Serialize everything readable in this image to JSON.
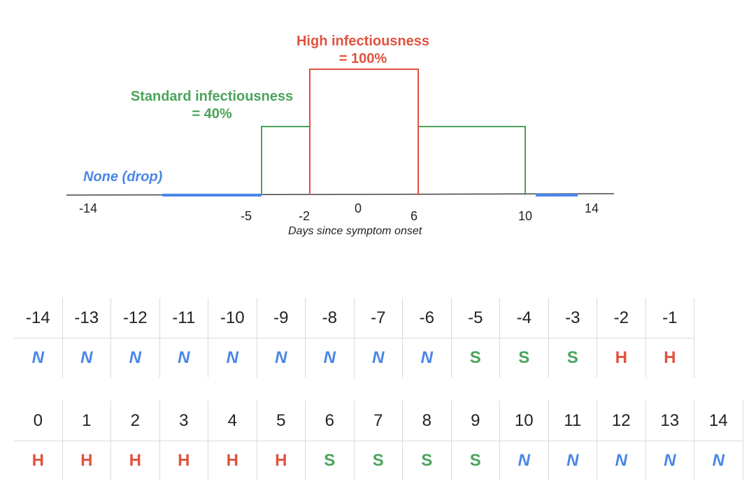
{
  "colors": {
    "none": "#4a86e8",
    "standard": "#4aa45a",
    "high": "#e0533f",
    "axis": "#444444"
  },
  "labels": {
    "high": [
      "High infectiousness",
      "= 100%"
    ],
    "standard": [
      "Standard infectiousness",
      "= 40%"
    ],
    "none": "None (drop)",
    "xaxis": "Days since symptom onset"
  },
  "ticks": [
    "-14",
    "-5",
    "-2",
    "0",
    "6",
    "10",
    "14"
  ],
  "table1": {
    "days": [
      "-14",
      "-13",
      "-12",
      "-11",
      "-10",
      "-9",
      "-8",
      "-7",
      "-6",
      "-5",
      "-4",
      "-3",
      "-2",
      "-1"
    ],
    "codes": [
      "N",
      "N",
      "N",
      "N",
      "N",
      "N",
      "N",
      "N",
      "N",
      "S",
      "S",
      "S",
      "H",
      "H"
    ]
  },
  "table2": {
    "days": [
      "0",
      "1",
      "2",
      "3",
      "4",
      "5",
      "6",
      "7",
      "8",
      "9",
      "10",
      "11",
      "12",
      "13",
      "14"
    ],
    "codes": [
      "H",
      "H",
      "H",
      "H",
      "H",
      "H",
      "S",
      "S",
      "S",
      "S",
      "N",
      "N",
      "N",
      "N",
      "N"
    ]
  }
}
